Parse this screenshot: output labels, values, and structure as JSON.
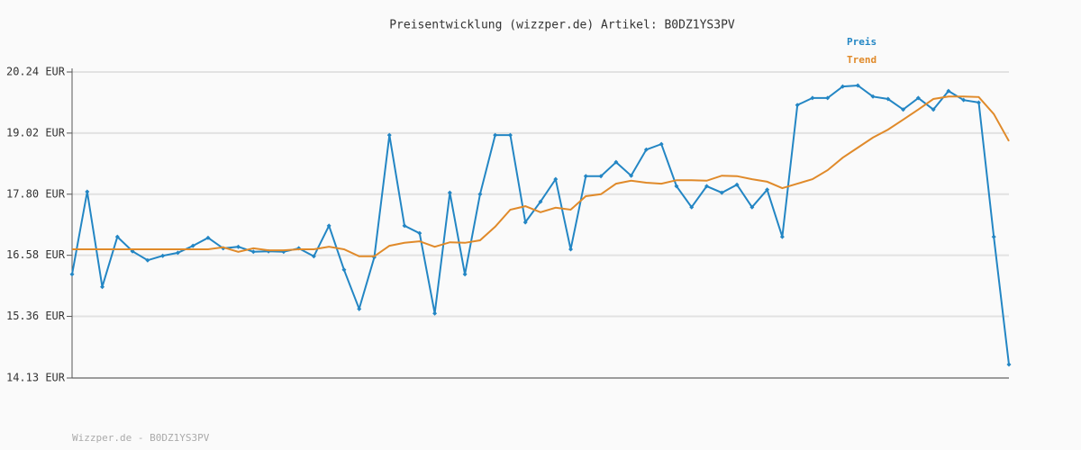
{
  "chart_data": {
    "type": "line",
    "title": "Preisentwicklung (wizzper.de) Artikel: B0DZ1YS3PV",
    "footer": "Wizzper.de - B0DZ1YS3PV",
    "categories": [
      null,
      null,
      null,
      null,
      null,
      null,
      null,
      null,
      null,
      null,
      null,
      null,
      null,
      null,
      null,
      null,
      null,
      null,
      null,
      null,
      null,
      null,
      null,
      null,
      null,
      null,
      null,
      null,
      null,
      null,
      null,
      null,
      null,
      null,
      null,
      null,
      null,
      null,
      null,
      null,
      null,
      null,
      null,
      null,
      null,
      null,
      null,
      null,
      null,
      null,
      null,
      null,
      null,
      null,
      null,
      null,
      null,
      null,
      null,
      null,
      null,
      null,
      null
    ],
    "series": [
      {
        "name": "Preis",
        "color": "#2386c4",
        "markers": true,
        "values": [
          16.2,
          17.85,
          15.95,
          16.95,
          16.66,
          16.48,
          16.57,
          16.63,
          16.77,
          16.93,
          16.72,
          16.75,
          16.65,
          16.66,
          16.65,
          16.72,
          16.56,
          17.17,
          16.29,
          15.51,
          16.54,
          18.98,
          17.17,
          17.02,
          15.42,
          17.83,
          16.2,
          17.8,
          18.98,
          18.98,
          17.24,
          17.65,
          18.1,
          16.7,
          18.16,
          18.16,
          18.44,
          18.17,
          18.69,
          18.8,
          17.96,
          17.54,
          17.96,
          17.83,
          17.99,
          17.54,
          17.89,
          16.95,
          19.58,
          19.72,
          19.72,
          19.95,
          19.97,
          19.75,
          19.7,
          19.49,
          19.72,
          19.49,
          19.86,
          19.68,
          19.63,
          16.95,
          14.4
        ]
      },
      {
        "name": "Trend",
        "color": "#e08a2a",
        "markers": false,
        "values": [
          16.7,
          16.7,
          16.7,
          16.7,
          16.7,
          16.7,
          16.7,
          16.7,
          16.7,
          16.7,
          16.74,
          16.65,
          16.72,
          16.68,
          16.68,
          16.7,
          16.7,
          16.75,
          16.7,
          16.56,
          16.56,
          16.77,
          16.83,
          16.86,
          16.75,
          16.84,
          16.83,
          16.88,
          17.15,
          17.49,
          17.56,
          17.44,
          17.53,
          17.49,
          17.76,
          17.8,
          18.01,
          18.07,
          18.03,
          18.01,
          18.08,
          18.08,
          18.07,
          18.17,
          18.16,
          18.1,
          18.05,
          17.92,
          18.01,
          18.1,
          18.28,
          18.53,
          18.73,
          18.93,
          19.09,
          19.29,
          19.49,
          19.7,
          19.75,
          19.75,
          19.74,
          19.4,
          18.86
        ]
      }
    ],
    "ylim": [
      14.13,
      20.24
    ],
    "yticks": [
      {
        "value": 14.13,
        "label": "14.13 EUR"
      },
      {
        "value": 15.36,
        "label": "15.36 EUR"
      },
      {
        "value": 16.58,
        "label": "16.58 EUR"
      },
      {
        "value": 17.8,
        "label": "17.80 EUR"
      },
      {
        "value": 19.02,
        "label": "19.02 EUR"
      },
      {
        "value": 20.24,
        "label": "20.24 EUR"
      }
    ],
    "grid": true
  }
}
